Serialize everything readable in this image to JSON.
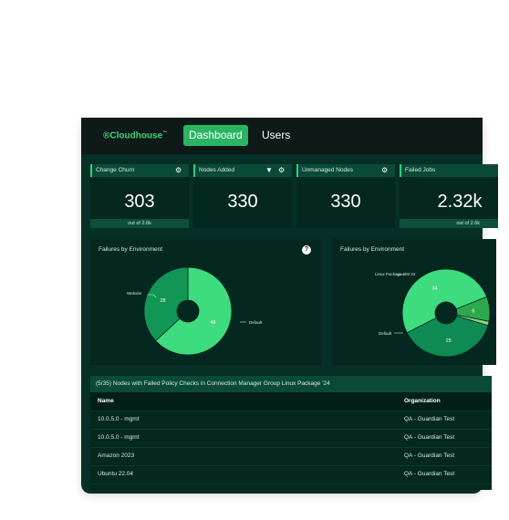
{
  "header": {
    "logo": "Cloudhouse",
    "logo_mark": "®",
    "tabs": [
      {
        "label": "Dashboard",
        "active": true
      },
      {
        "label": "Users",
        "active": false
      }
    ]
  },
  "cards": [
    {
      "title": "Change Churn",
      "value": "303",
      "footer": "out of 2.6k"
    },
    {
      "title": "Nodes Added",
      "value": "330",
      "footer": ""
    },
    {
      "title": "Unmanaged Nodes",
      "value": "330",
      "footer": ""
    },
    {
      "title": "Failed Jobs",
      "value": "2.32k",
      "footer": "out of 2.6k"
    }
  ],
  "charts": [
    {
      "title": "Failures by Environment",
      "help": "?"
    },
    {
      "title": "Failures by Environment"
    }
  ],
  "chart_data": [
    {
      "type": "pie",
      "title": "Failures by Environment",
      "slices": [
        {
          "label": "Default",
          "value": 48
        },
        {
          "label": "Website",
          "value": 28
        }
      ]
    },
    {
      "type": "pie",
      "title": "Failures by Environment",
      "slices": [
        {
          "label": "Default",
          "value": 34
        },
        {
          "label": "Linux Package OM 24",
          "value": 6
        },
        {
          "label": "",
          "value": 1
        },
        {
          "label": "",
          "value": 25
        }
      ]
    }
  ],
  "table": {
    "title": "(5/35) Nodes with Failed Policy Checks in Connection Manager Group Linux Package '24",
    "columns": [
      "Name",
      "Organization"
    ],
    "rows": [
      [
        "10.0.5.0 - mgmt",
        "QA - Guardian Test"
      ],
      [
        "10.0.5.0 - mgmt",
        "QA - Guardian Test"
      ],
      [
        "Amazon 2023",
        "QA - Guardian Test"
      ],
      [
        "Ubuntu 22.04",
        "QA - Guardian Test"
      ]
    ]
  },
  "colors": {
    "background": "#052f27",
    "accent": "#2bb562",
    "pie_primary": "#3ddc7f",
    "pie_secondary": "#129656"
  }
}
